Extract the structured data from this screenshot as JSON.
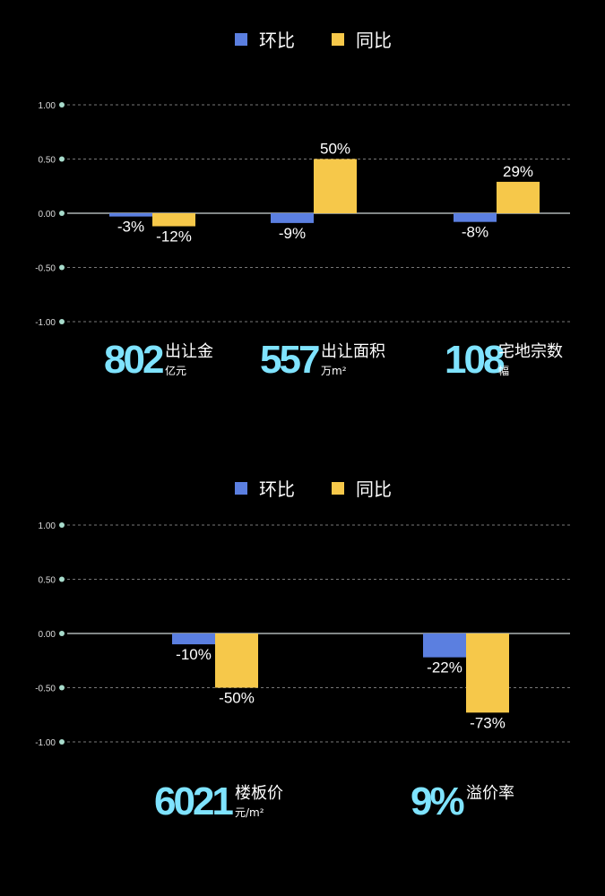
{
  "colors": {
    "hb": "#5b7fe0",
    "tb": "#f6c84a",
    "big": "#7fe3ff",
    "dot": "#a8dccc",
    "grid": "#777777"
  },
  "chart_data": [
    {
      "type": "bar",
      "series": [
        {
          "name": "环比",
          "values": [
            -3,
            -9,
            -8
          ],
          "labels": [
            "-3%",
            "-9%",
            "-8%"
          ]
        },
        {
          "name": "同比",
          "values": [
            -12,
            50,
            29
          ],
          "labels": [
            "-12%",
            "50%",
            "29%"
          ]
        }
      ],
      "categories": [
        "出让金",
        "出让面积",
        "宅地宗数"
      ],
      "ylim": [
        -1.0,
        1.0
      ],
      "yticks": [
        "1.00",
        "0.50",
        "0.00",
        "-0.50",
        "-1.00"
      ],
      "legend_position": "top-center",
      "grid": true,
      "stats": [
        {
          "number": "802",
          "label": "出让金",
          "unit": "亿元"
        },
        {
          "number": "557",
          "label": "出让面积",
          "unit": "万m²"
        },
        {
          "number": "108",
          "label": "宅地宗数",
          "unit": "幅"
        }
      ]
    },
    {
      "type": "bar",
      "series": [
        {
          "name": "环比",
          "values": [
            -10,
            -22
          ],
          "labels": [
            "-10%",
            "-22%"
          ]
        },
        {
          "name": "同比",
          "values": [
            -50,
            -73
          ],
          "labels": [
            "-50%",
            "-73%"
          ]
        }
      ],
      "categories": [
        "楼板价",
        "溢价率"
      ],
      "ylim": [
        -1.0,
        1.0
      ],
      "yticks": [
        "1.00",
        "0.50",
        "0.00",
        "-0.50",
        "-1.00"
      ],
      "legend_position": "top-center",
      "grid": true,
      "stats": [
        {
          "number": "6021",
          "label": "楼板价",
          "unit": "元/m²"
        },
        {
          "number": "9%",
          "label": "溢价率",
          "unit": ""
        }
      ]
    }
  ]
}
